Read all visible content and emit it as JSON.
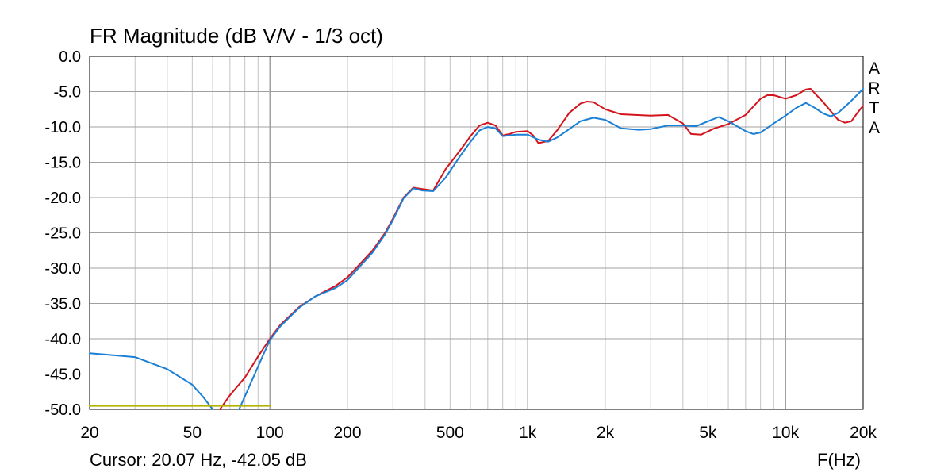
{
  "header": {
    "title": "FR Magnitude (dB V/V - 1/3 oct)"
  },
  "footer": {
    "cursor_readout": "Cursor: 20.07 Hz, -42.05 dB",
    "x_axis_unit": "F(Hz)"
  },
  "watermark": {
    "letters": [
      "A",
      "R",
      "T",
      "A"
    ]
  },
  "chart_data": {
    "type": "line",
    "title": "FR Magnitude (dB V/V - 1/3 oct)",
    "xlabel": "F(Hz)",
    "ylabel": "",
    "x_scale": "log",
    "xlim": [
      20,
      20000
    ],
    "ylim": [
      -50,
      0
    ],
    "grid": true,
    "x_ticks": [
      20,
      50,
      100,
      200,
      500,
      1000,
      2000,
      5000,
      10000,
      20000
    ],
    "x_tick_labels": [
      "20",
      "50",
      "100",
      "200",
      "500",
      "1k",
      "2k",
      "5k",
      "10k",
      "20k"
    ],
    "y_ticks": [
      0,
      -5,
      -10,
      -15,
      -20,
      -25,
      -30,
      -35,
      -40,
      -45,
      -50
    ],
    "y_tick_labels": [
      "0.0",
      "-5.0",
      "-10.0",
      "-15.0",
      "-20.0",
      "-25.0",
      "-30.0",
      "-35.0",
      "-40.0",
      "-45.0",
      "-50.0"
    ],
    "series": [
      {
        "color": "#d4141c",
        "points": [
          [
            64,
            -50
          ],
          [
            70,
            -48
          ],
          [
            80,
            -45.5
          ],
          [
            90,
            -42.5
          ],
          [
            100,
            -40
          ],
          [
            110,
            -38
          ],
          [
            130,
            -35.5
          ],
          [
            150,
            -34
          ],
          [
            180,
            -32.5
          ],
          [
            200,
            -31.3
          ],
          [
            250,
            -27.5
          ],
          [
            280,
            -25
          ],
          [
            300,
            -23
          ],
          [
            330,
            -20
          ],
          [
            360,
            -18.6
          ],
          [
            390,
            -18.8
          ],
          [
            430,
            -19
          ],
          [
            480,
            -16
          ],
          [
            550,
            -13.2
          ],
          [
            600,
            -11.3
          ],
          [
            650,
            -9.8
          ],
          [
            700,
            -9.4
          ],
          [
            750,
            -9.8
          ],
          [
            800,
            -11.2
          ],
          [
            850,
            -11
          ],
          [
            900,
            -10.7
          ],
          [
            1000,
            -10.6
          ],
          [
            1050,
            -11.2
          ],
          [
            1100,
            -12.3
          ],
          [
            1200,
            -12
          ],
          [
            1300,
            -10.5
          ],
          [
            1450,
            -8
          ],
          [
            1600,
            -6.7
          ],
          [
            1700,
            -6.4
          ],
          [
            1800,
            -6.5
          ],
          [
            2000,
            -7.5
          ],
          [
            2300,
            -8.2
          ],
          [
            3000,
            -8.4
          ],
          [
            3500,
            -8.3
          ],
          [
            4000,
            -9.5
          ],
          [
            4300,
            -11
          ],
          [
            4700,
            -11.1
          ],
          [
            5300,
            -10.2
          ],
          [
            6000,
            -9.6
          ],
          [
            7000,
            -8.3
          ],
          [
            8000,
            -6
          ],
          [
            8500,
            -5.5
          ],
          [
            9000,
            -5.5
          ],
          [
            10000,
            -6
          ],
          [
            11000,
            -5.5
          ],
          [
            12000,
            -4.7
          ],
          [
            12500,
            -4.6
          ],
          [
            14000,
            -6.5
          ],
          [
            16000,
            -9
          ],
          [
            17000,
            -9.4
          ],
          [
            18000,
            -9.2
          ],
          [
            19000,
            -8
          ],
          [
            20000,
            -7
          ]
        ]
      },
      {
        "color": "#1a7fd6",
        "points": [
          [
            20,
            -42.05
          ],
          [
            30,
            -42.6
          ],
          [
            40,
            -44.3
          ],
          [
            50,
            -46.5
          ],
          [
            55,
            -48.2
          ],
          [
            60,
            -50
          ]
        ]
      },
      {
        "color": "#1a7fd6",
        "points": [
          [
            76,
            -50
          ],
          [
            85,
            -46
          ],
          [
            95,
            -42
          ],
          [
            100,
            -40.2
          ],
          [
            110,
            -38.2
          ],
          [
            130,
            -35.6
          ],
          [
            150,
            -34
          ],
          [
            180,
            -32.8
          ],
          [
            200,
            -31.7
          ],
          [
            250,
            -27.8
          ],
          [
            280,
            -25.2
          ],
          [
            300,
            -23.2
          ],
          [
            330,
            -20.1
          ],
          [
            360,
            -18.7
          ],
          [
            390,
            -19
          ],
          [
            430,
            -19.1
          ],
          [
            480,
            -17.2
          ],
          [
            550,
            -14
          ],
          [
            600,
            -12.1
          ],
          [
            650,
            -10.5
          ],
          [
            700,
            -10
          ],
          [
            750,
            -10.2
          ],
          [
            800,
            -11.3
          ],
          [
            900,
            -11.1
          ],
          [
            1000,
            -11.1
          ],
          [
            1100,
            -11.8
          ],
          [
            1200,
            -12.1
          ],
          [
            1300,
            -11.5
          ],
          [
            1450,
            -10.3
          ],
          [
            1600,
            -9.2
          ],
          [
            1800,
            -8.7
          ],
          [
            2000,
            -9
          ],
          [
            2300,
            -10.2
          ],
          [
            2700,
            -10.4
          ],
          [
            3000,
            -10.3
          ],
          [
            3500,
            -9.8
          ],
          [
            4000,
            -9.8
          ],
          [
            4500,
            -9.9
          ],
          [
            5000,
            -9.2
          ],
          [
            5500,
            -8.6
          ],
          [
            6000,
            -9.2
          ],
          [
            7000,
            -10.6
          ],
          [
            7500,
            -11
          ],
          [
            8000,
            -10.8
          ],
          [
            9000,
            -9.5
          ],
          [
            10000,
            -8.4
          ],
          [
            11000,
            -7.3
          ],
          [
            12000,
            -6.6
          ],
          [
            13000,
            -7.3
          ],
          [
            14000,
            -8.1
          ],
          [
            15000,
            -8.5
          ],
          [
            16000,
            -8
          ],
          [
            18000,
            -6.3
          ],
          [
            20000,
            -4.6
          ]
        ]
      },
      {
        "color": "#b3b300",
        "points": [
          [
            20,
            -49.5
          ],
          [
            100,
            -49.5
          ]
        ]
      }
    ]
  }
}
